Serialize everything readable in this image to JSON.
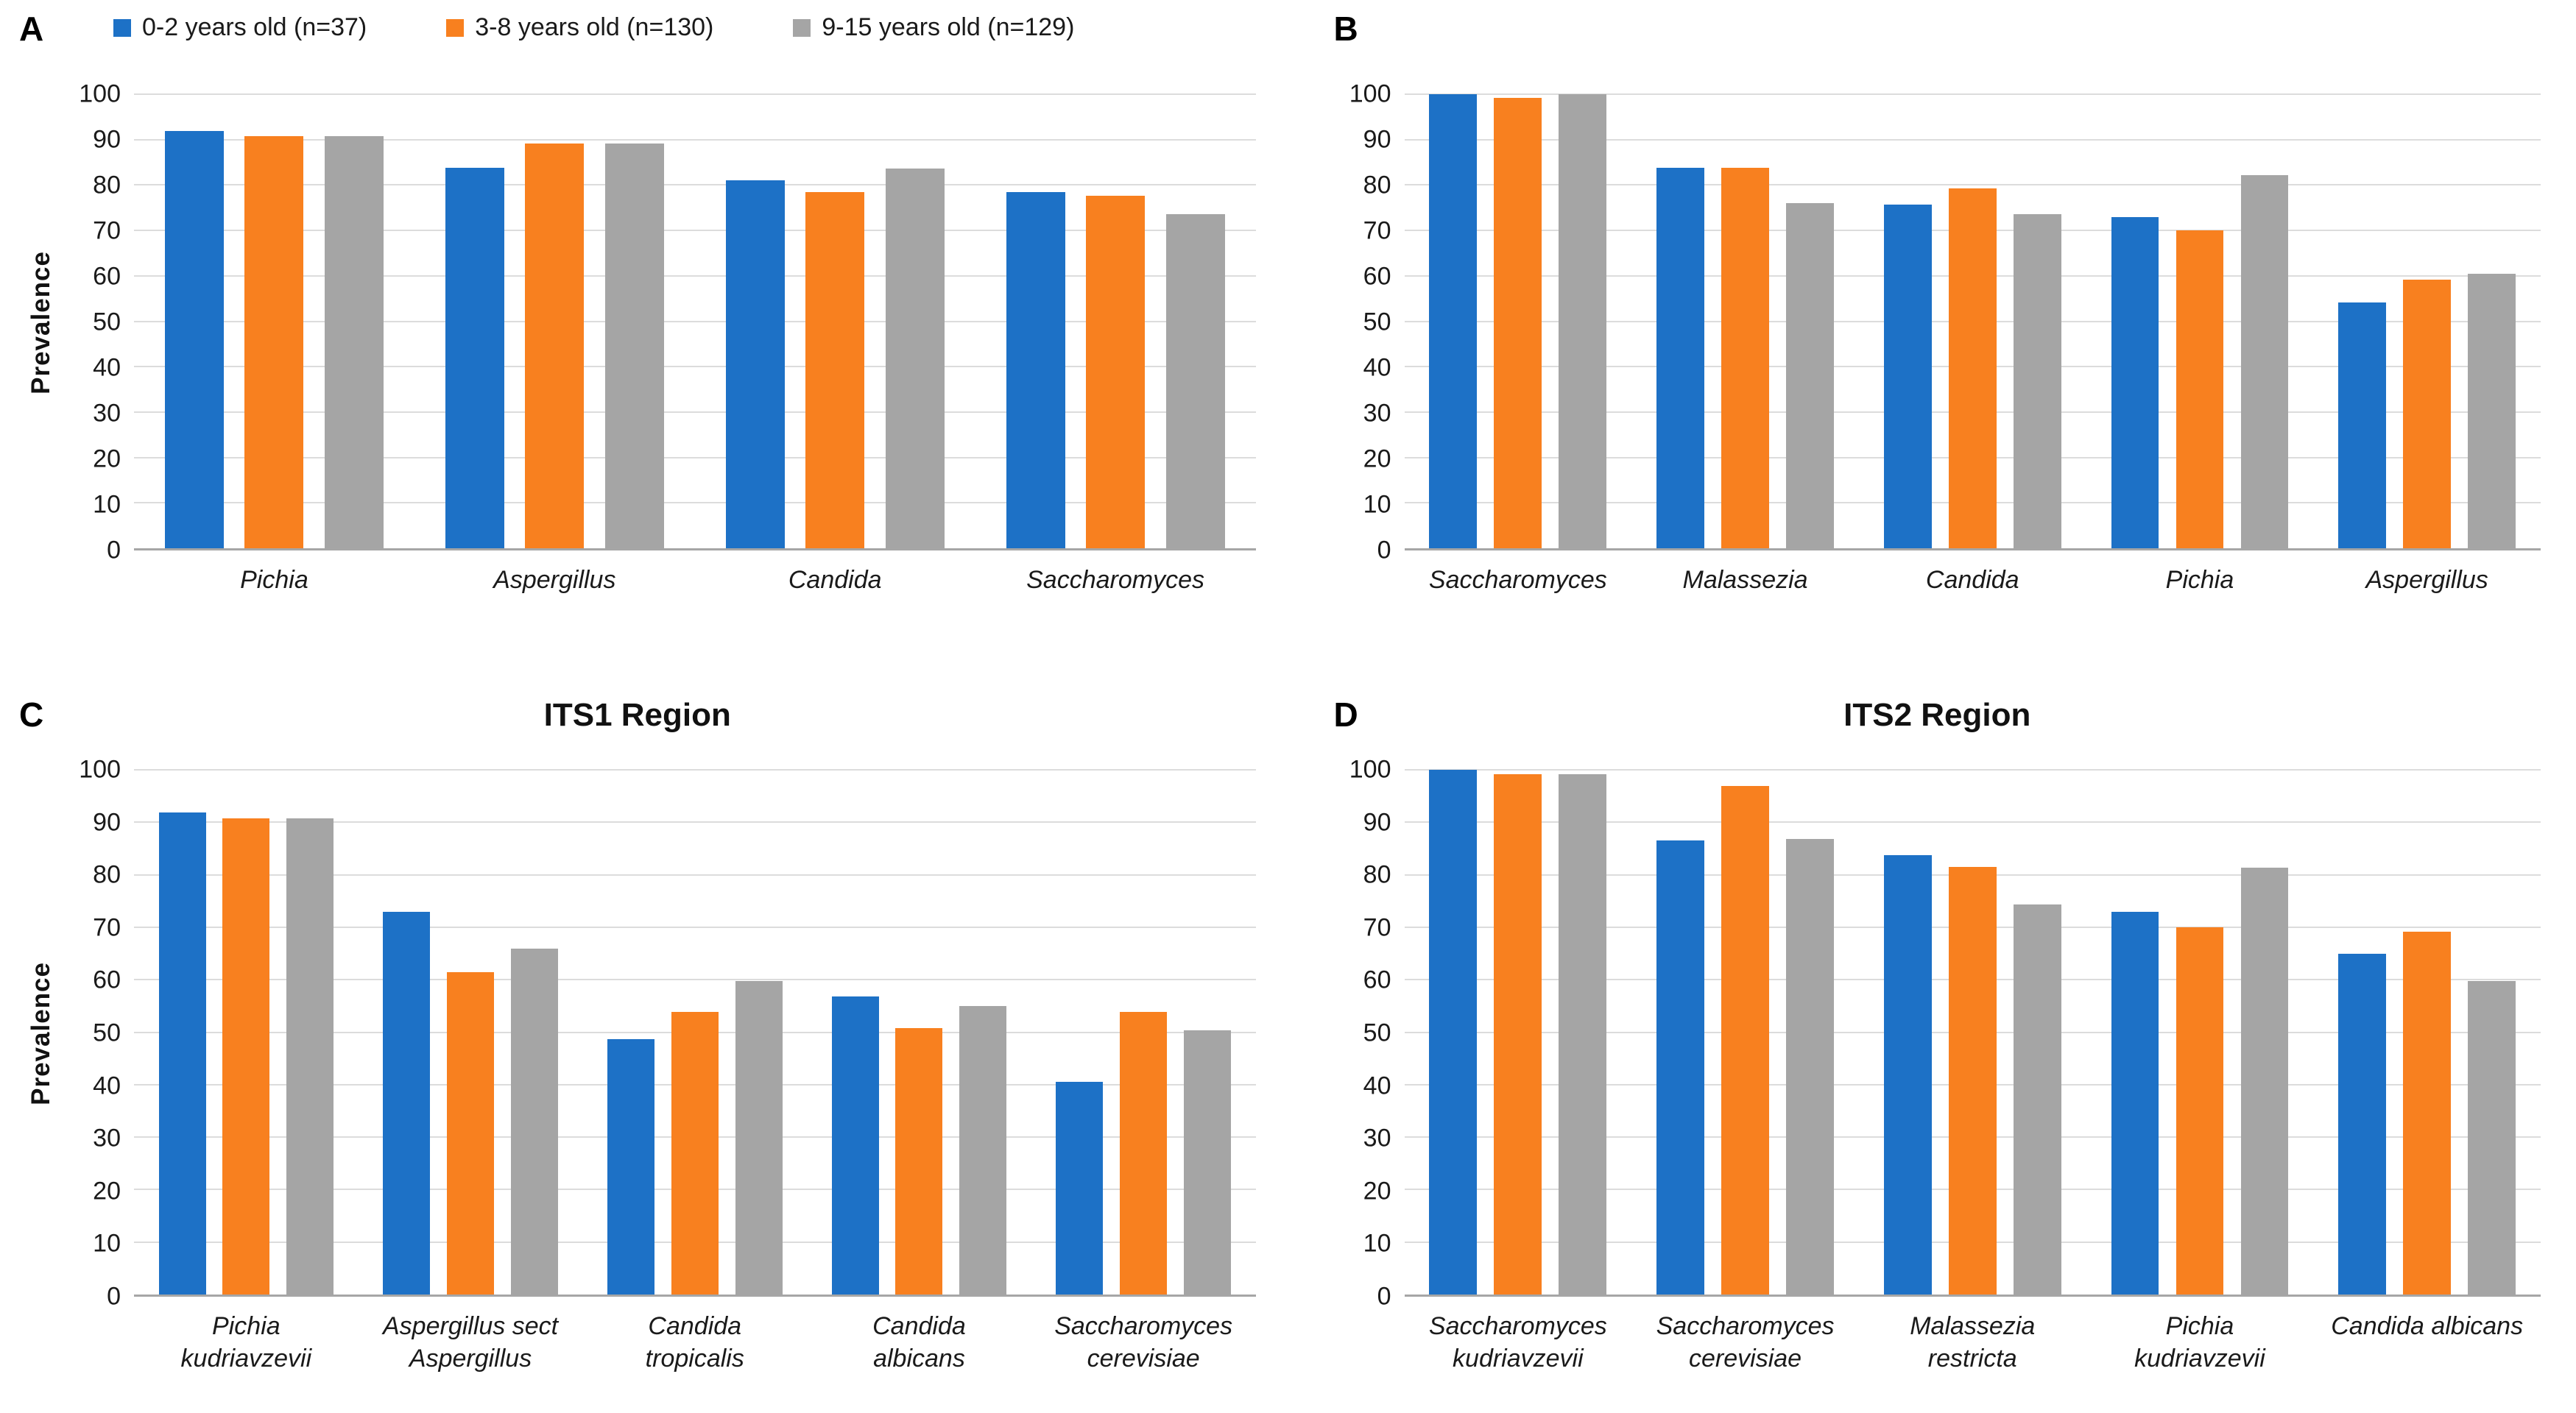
{
  "legend": {
    "items": [
      {
        "label": "0-2 years old (n=37)",
        "color": "#1d71c6"
      },
      {
        "label": "3-8 years old (n=130)",
        "color": "#f8801f"
      },
      {
        "label": "9-15 years old (n=129)",
        "color": "#a5a5a5"
      }
    ]
  },
  "chart_data": [
    {
      "panel": "A",
      "type": "bar",
      "title": "",
      "ylabel": "Prevalence",
      "xlabel": "",
      "ylim": [
        0,
        100
      ],
      "ytick_step": 10,
      "grid": true,
      "legend_position": "top",
      "categories": [
        "Pichia",
        "Aspergillus",
        "Candida",
        "Saccharomyces"
      ],
      "series": [
        {
          "name": "0-2 years old (n=37)",
          "color": "#1d71c6",
          "values": [
            91.9,
            83.8,
            81.1,
            78.4
          ]
        },
        {
          "name": "3-8 years old (n=130)",
          "color": "#f8801f",
          "values": [
            90.8,
            89.2,
            78.5,
            77.7
          ]
        },
        {
          "name": "9-15 years old (n=129)",
          "color": "#a5a5a5",
          "values": [
            90.7,
            89.1,
            83.7,
            73.6
          ]
        }
      ]
    },
    {
      "panel": "B",
      "type": "bar",
      "title": "",
      "ylabel": "",
      "xlabel": "",
      "ylim": [
        0,
        100
      ],
      "ytick_step": 10,
      "grid": true,
      "legend_position": "none",
      "categories": [
        "Saccharomyces",
        "Malassezia",
        "Candida",
        "Pichia",
        "Aspergillus"
      ],
      "series": [
        {
          "name": "0-2 years old (n=37)",
          "color": "#1d71c6",
          "values": [
            100,
            83.8,
            75.7,
            73.0,
            54.1
          ]
        },
        {
          "name": "3-8 years old (n=130)",
          "color": "#f8801f",
          "values": [
            99.2,
            83.8,
            79.2,
            70.0,
            59.2
          ]
        },
        {
          "name": "9-15 years old (n=129)",
          "color": "#a5a5a5",
          "values": [
            100,
            76.0,
            73.6,
            82.2,
            60.5
          ]
        }
      ]
    },
    {
      "panel": "C",
      "type": "bar",
      "title": "ITS1 Region",
      "ylabel": "Prevalence",
      "xlabel": "",
      "ylim": [
        0,
        100
      ],
      "ytick_step": 10,
      "grid": true,
      "legend_position": "none",
      "categories": [
        "Pichia\nkudriavzevii",
        "Aspergillus sect\nAspergillus",
        "Candida\ntropicalis",
        "Candida\nalbicans",
        "Saccharomyces\ncerevisiae"
      ],
      "series": [
        {
          "name": "0-2 years old (n=37)",
          "color": "#1d71c6",
          "values": [
            91.9,
            73.0,
            48.6,
            56.8,
            40.5
          ]
        },
        {
          "name": "3-8 years old (n=130)",
          "color": "#f8801f",
          "values": [
            90.8,
            61.5,
            53.8,
            50.8,
            53.8
          ]
        },
        {
          "name": "9-15 years old (n=129)",
          "color": "#a5a5a5",
          "values": [
            90.7,
            65.9,
            59.7,
            55.0,
            50.4
          ]
        }
      ]
    },
    {
      "panel": "D",
      "type": "bar",
      "title": "ITS2 Region",
      "ylabel": "",
      "xlabel": "",
      "ylim": [
        0,
        100
      ],
      "ytick_step": 10,
      "grid": true,
      "legend_position": "none",
      "categories": [
        "Saccharomyces\nkudriavzevii",
        "Saccharomyces\ncerevisiae",
        "Malassezia\nrestricta",
        "Pichia\nkudriavzevii",
        "Candida albicans"
      ],
      "series": [
        {
          "name": "0-2 years old (n=37)",
          "color": "#1d71c6",
          "values": [
            100,
            86.5,
            83.8,
            73.0,
            64.9
          ]
        },
        {
          "name": "3-8 years old (n=130)",
          "color": "#f8801f",
          "values": [
            99.2,
            96.9,
            81.5,
            70.0,
            69.2
          ]
        },
        {
          "name": "9-15 years old (n=129)",
          "color": "#a5a5a5",
          "values": [
            99.2,
            86.8,
            74.4,
            81.4,
            59.7
          ]
        }
      ]
    }
  ]
}
